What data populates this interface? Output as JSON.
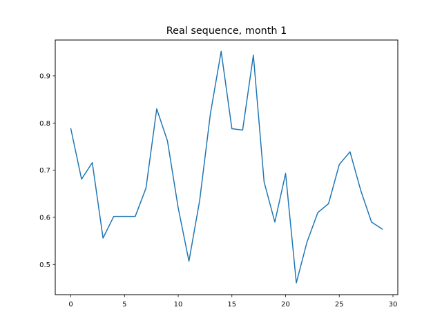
{
  "chart_data": {
    "type": "line",
    "title": "Real sequence, month 1",
    "xlabel": "",
    "ylabel": "",
    "xlim": [
      -1.45,
      30.45
    ],
    "ylim": [
      0.436,
      0.976
    ],
    "xticks": [
      0,
      5,
      10,
      15,
      20,
      25,
      30
    ],
    "yticks": [
      0.5,
      0.6,
      0.7,
      0.8,
      0.9
    ],
    "xtick_labels": [
      "0",
      "5",
      "10",
      "15",
      "20",
      "25",
      "30"
    ],
    "ytick_labels": [
      "0.5",
      "0.6",
      "0.7",
      "0.8",
      "0.9"
    ],
    "grid": false,
    "series": [
      {
        "color": "#1f77b4",
        "x": [
          0,
          1,
          2,
          3,
          4,
          5,
          6,
          7,
          8,
          9,
          10,
          11,
          12,
          13,
          14,
          15,
          16,
          17,
          18,
          19,
          20,
          21,
          22,
          23,
          24,
          25,
          26,
          27,
          28,
          29
        ],
        "values": [
          0.788,
          0.681,
          0.716,
          0.556,
          0.602,
          0.602,
          0.602,
          0.662,
          0.83,
          0.762,
          0.62,
          0.507,
          0.636,
          0.82,
          0.952,
          0.788,
          0.785,
          0.944,
          0.675,
          0.59,
          0.693,
          0.461,
          0.548,
          0.61,
          0.629,
          0.712,
          0.739,
          0.657,
          0.59,
          0.575
        ]
      }
    ]
  }
}
